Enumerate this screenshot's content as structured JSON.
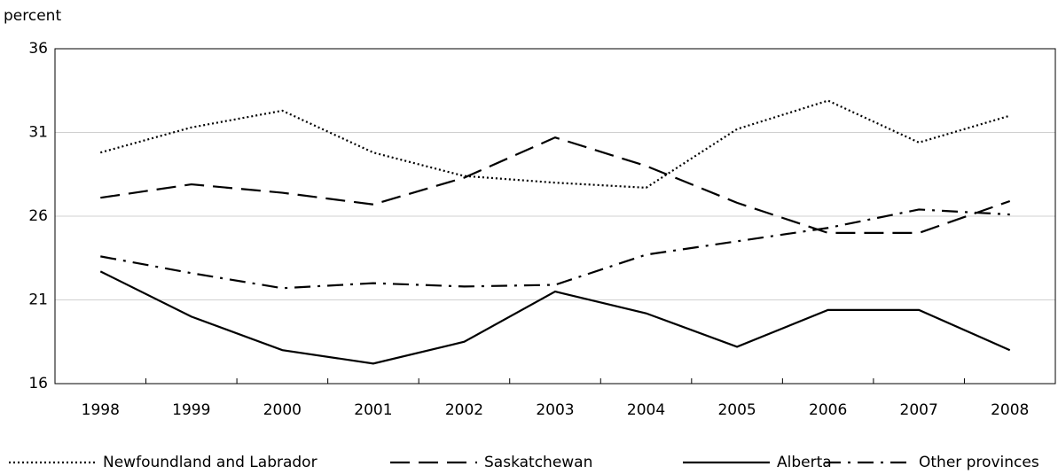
{
  "chart_data": {
    "type": "line",
    "y_axis_label": "percent",
    "categories": [
      "1998",
      "1999",
      "2000",
      "2001",
      "2002",
      "2003",
      "2004",
      "2005",
      "2006",
      "2007",
      "2008"
    ],
    "series": [
      {
        "name": "Newfoundland and Labrador",
        "color": "#000000",
        "dash": "dotted",
        "values": [
          29.8,
          31.3,
          32.3,
          29.8,
          28.4,
          28.0,
          27.7,
          31.2,
          32.9,
          30.4,
          32.0
        ]
      },
      {
        "name": "Saskatchewan",
        "color": "#000000",
        "dash": "dashed",
        "values": [
          27.1,
          27.9,
          27.4,
          26.7,
          28.3,
          30.7,
          29.0,
          26.8,
          25.0,
          25.0,
          26.9
        ]
      },
      {
        "name": "Alberta",
        "color": "#000000",
        "dash": "solid",
        "values": [
          22.7,
          20.0,
          18.0,
          17.2,
          18.5,
          21.5,
          20.2,
          18.2,
          20.4,
          20.4,
          18.0
        ]
      },
      {
        "name": "Other provinces",
        "color": "#000000",
        "dash": "dashdot",
        "values": [
          23.6,
          22.6,
          21.7,
          22.0,
          21.8,
          21.9,
          23.7,
          24.5,
          25.3,
          26.4,
          26.1
        ]
      }
    ],
    "ylim": [
      16,
      36
    ],
    "yticks": [
      16,
      21,
      26,
      31,
      36
    ],
    "grid": true,
    "legend": "bottom"
  }
}
